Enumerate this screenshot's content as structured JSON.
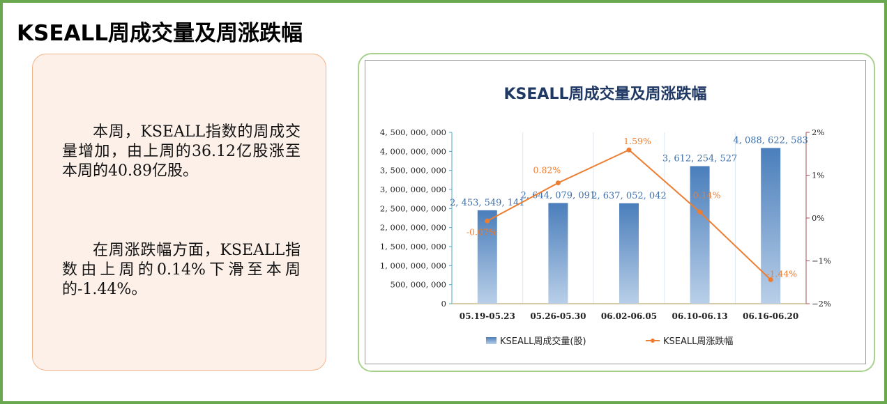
{
  "page_title": "KSEALL周成交量及周涨跌幅",
  "summary": {
    "paragraph1": "本周，KSEALL指数的周成交量增加，由上周的36.12亿股涨至本周的40.89亿股。",
    "paragraph2": "在周涨跌幅方面，KSEALL指数由上周的0.14%下滑至本周的-1.44%。"
  },
  "chart_data": {
    "type": "bar+line",
    "title": "KSEALL周成交量及周涨跌幅",
    "categories": [
      "05.19-05.23",
      "05.26-05.30",
      "06.02-06.05",
      "06.10-06.13",
      "06.16-06.20"
    ],
    "series": [
      {
        "name": "KSEALL周成交量(股)",
        "type": "bar",
        "axis": "left",
        "values": [
          2453549141,
          2644079091,
          2637052042,
          3612254527,
          4088622583
        ],
        "labels": [
          "2, 453, 549, 141",
          "2, 644, 079, 091",
          "2, 637, 052, 042",
          "3, 612, 254, 527",
          "4, 088, 622, 583"
        ],
        "color": "#4a7ebb"
      },
      {
        "name": "KSEALL周涨跌幅",
        "type": "line",
        "axis": "right",
        "values": [
          -0.07,
          0.82,
          1.59,
          0.14,
          -1.44
        ],
        "labels": [
          "-0.07%",
          "0.82%",
          "1.59%",
          "0.14%",
          "-1.44%"
        ],
        "color": "#ed7d31"
      }
    ],
    "ylim_left": [
      0,
      4500000000
    ],
    "yticks_left": [
      "0",
      "500, 000, 000",
      "1, 000, 000, 000",
      "1, 500, 000, 000",
      "2, 000, 000, 000",
      "2, 500, 000, 000",
      "3, 000, 000, 000",
      "3, 500, 000, 000",
      "4, 000, 000, 000",
      "4, 500, 000, 000"
    ],
    "ylim_right": [
      -2,
      2
    ],
    "yticks_right": [
      "−2%",
      "−1%",
      "0%",
      "1%",
      "2%"
    ],
    "legend": "bottom",
    "grid": "vertical"
  }
}
